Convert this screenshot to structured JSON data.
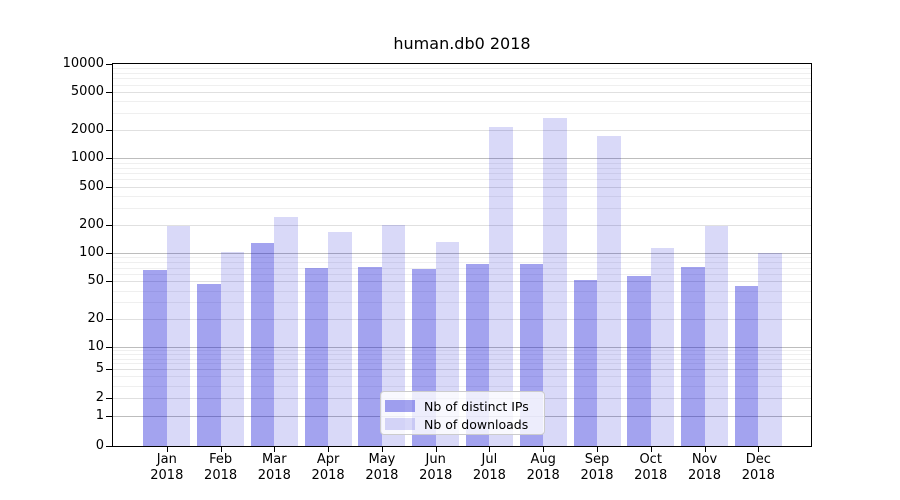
{
  "chart_data": {
    "type": "bar",
    "title": "human.db0 2018",
    "categories": [
      "Jan",
      "Feb",
      "Mar",
      "Apr",
      "May",
      "Jun",
      "Jul",
      "Aug",
      "Sep",
      "Oct",
      "Nov",
      "Dec"
    ],
    "year": "2018",
    "series": [
      {
        "name": "Nb of distinct IPs",
        "color": "rgba(0,0,210,0.36)",
        "values": [
          66,
          47,
          128,
          69,
          72,
          67,
          77,
          77,
          52,
          57,
          72,
          45
        ]
      },
      {
        "name": "Nb of downloads",
        "color": "rgba(0,0,210,0.15)",
        "values": [
          192,
          102,
          242,
          169,
          197,
          132,
          2140,
          2690,
          1730,
          114,
          195,
          101
        ]
      }
    ],
    "y_ticks": [
      0,
      1,
      2,
      5,
      10,
      20,
      50,
      100,
      200,
      500,
      1000,
      2000,
      5000,
      10000
    ],
    "y_scale": "symlog",
    "ylim": [
      0,
      10000
    ],
    "xlabel": "",
    "ylabel": "",
    "grid": true,
    "legend_position": "inside-bottom-center"
  },
  "colors": {
    "bar_dark": "#a3a3ee",
    "bar_light": "#d8d8f8",
    "grid_major": "#bdbdbd",
    "grid_sub": "#e0e0e0",
    "grid_minor": "#efefef",
    "axis": "#000000",
    "background": "#ffffff"
  }
}
